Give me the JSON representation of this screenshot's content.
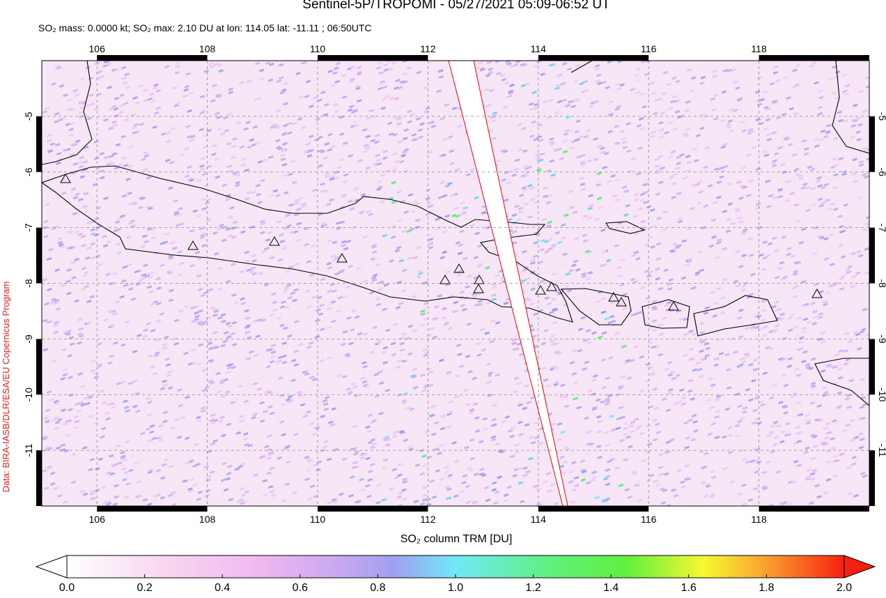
{
  "title": "Sentinel-5P/TROPOMI - 05/27/2021 05:09-06:52 UT",
  "subtitle": "SO₂ mass: 0.0000 kt; SO₂ max: 2.10 DU at lon: 114.05 lat: -11.11 ; 06:50UTC",
  "credit": "Data: BIRA-IASB/DLR/ESA/EU Copernicus Program",
  "map": {
    "lon_range": [
      105,
      120
    ],
    "lat_range": [
      -12,
      -4
    ],
    "lon_ticks": [
      106,
      108,
      110,
      112,
      114,
      116,
      118
    ],
    "lat_ticks": [
      -5,
      -6,
      -7,
      -8,
      -9,
      -10,
      -11
    ]
  },
  "colorbar": {
    "label": "SO₂ column TRM [DU]",
    "range": [
      0,
      2
    ],
    "ticks": [
      {
        "value": 0,
        "label": "0.0"
      },
      0.2,
      0.4,
      0.6,
      0.8,
      {
        "value": 1,
        "label": "1.0"
      },
      1.2,
      1.4,
      1.6,
      1.8,
      {
        "value": 2,
        "label": "2.0"
      }
    ]
  }
}
